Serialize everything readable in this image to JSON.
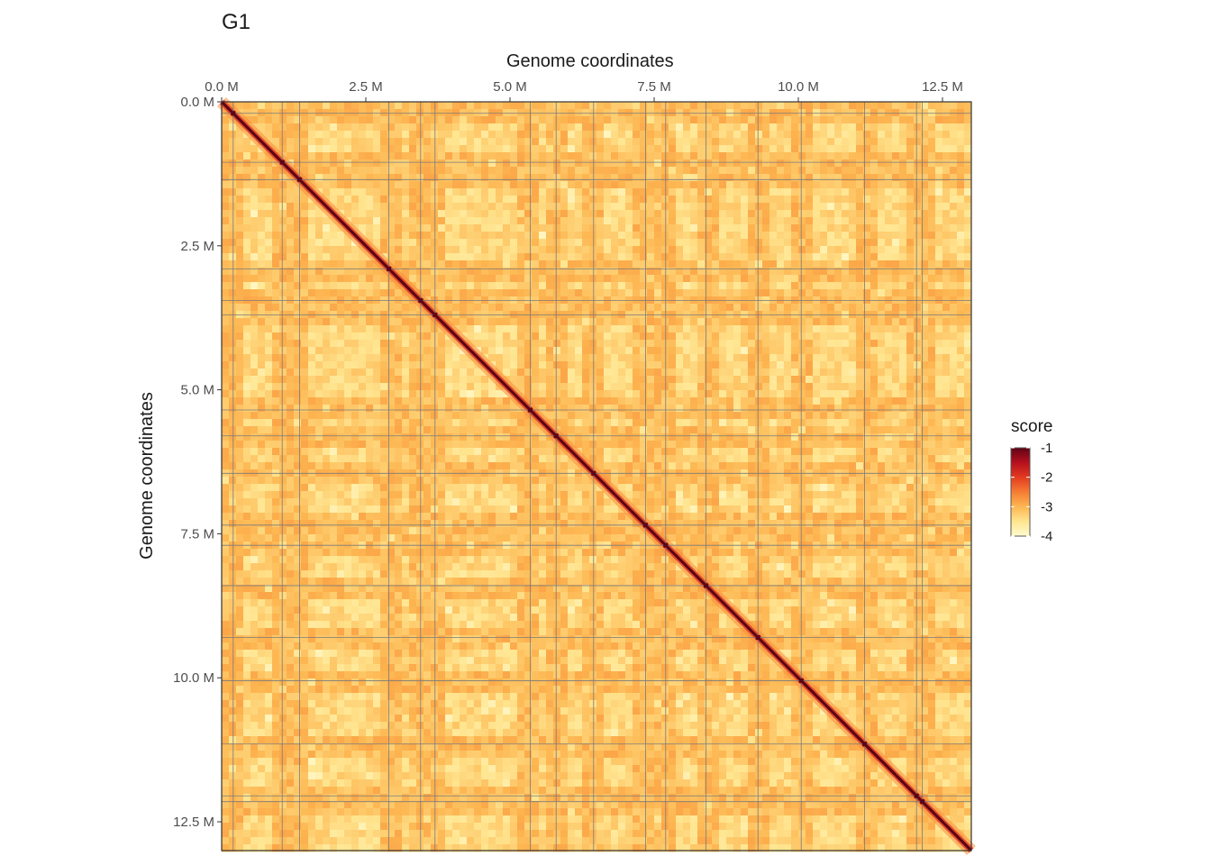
{
  "chart_data": {
    "type": "heatmap",
    "title": "G1",
    "xlabel": "Genome coordinates",
    "ylabel": "Genome coordinates",
    "x_range": [
      0,
      13.0
    ],
    "y_range": [
      0,
      13.0
    ],
    "y_reversed": true,
    "x_axis_position": "top",
    "ticks": [
      0,
      2.5,
      5.0,
      7.5,
      10.0,
      12.5
    ],
    "tick_labels": [
      "0.0 M",
      "2.5 M",
      "5.0 M",
      "7.5 M",
      "10.0 M",
      "12.5 M"
    ],
    "boundaries": [
      0.2,
      1.05,
      1.35,
      2.9,
      3.45,
      3.7,
      5.35,
      5.8,
      6.45,
      7.35,
      7.7,
      8.4,
      9.3,
      10.05,
      11.15,
      12.05,
      12.15
    ],
    "legend": {
      "title": "score",
      "placement": "right",
      "range": [
        -4,
        -1
      ],
      "ticks": [
        -1,
        -2,
        -3,
        -4
      ],
      "tick_labels": [
        "-1",
        "-2",
        "-3",
        "-4"
      ],
      "colors": [
        "#fffbd0",
        "#ffe590",
        "#fdb651",
        "#f57c33",
        "#e33a20",
        "#b5101e",
        "#5e0416"
      ]
    },
    "grid": false
  }
}
